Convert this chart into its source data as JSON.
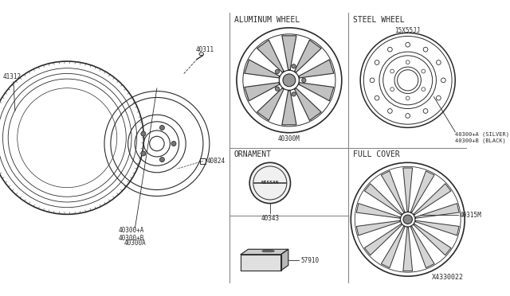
{
  "bg_color": "#ffffff",
  "line_color": "#2a2a2a",
  "grid_line_color": "#888888",
  "title_font_size": 7,
  "label_font_size": 5.5,
  "diagram_number": "X4330022",
  "left": {
    "tire_label": "41312",
    "wheel_label": "40300+A\n40300+B",
    "wheel_sub_label": "40300A",
    "valve_label": "40311",
    "nut_label": "40824"
  },
  "top_left": {
    "title": "ALUMINUM WHEEL",
    "part_label": "40300M"
  },
  "top_right": {
    "title": "STEEL WHEEL",
    "part_label_line1": "40300+A (SILVER)",
    "part_label_line2": "40300+B (BLACK)",
    "size_label": "15X55JJ"
  },
  "bottom_left": {
    "title": "ORNAMENT",
    "part_label": "40343",
    "box_label": "57910"
  },
  "bottom_right": {
    "title": "FULL COVER",
    "part_label": "40315M"
  }
}
